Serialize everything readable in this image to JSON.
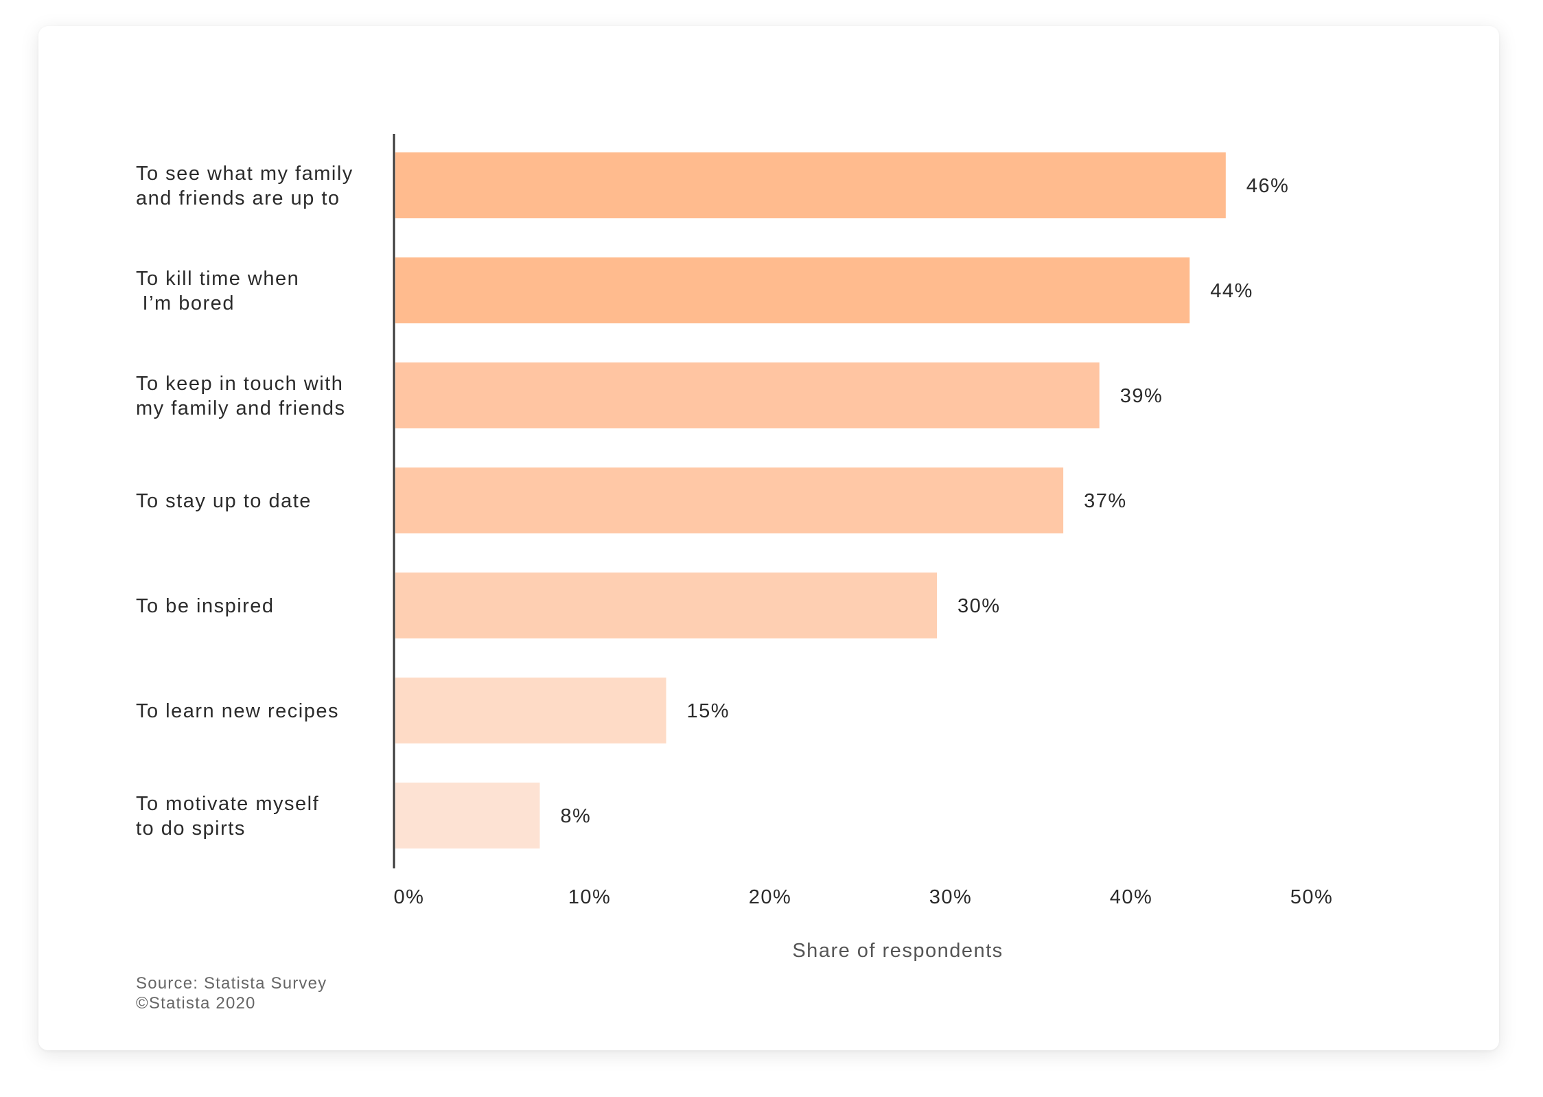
{
  "chart_data": {
    "type": "bar",
    "orientation": "horizontal",
    "categories": [
      [
        "To see what my family",
        "and friends are up to"
      ],
      [
        "To kill time when",
        " I’m bored"
      ],
      [
        "To keep in touch with",
        "my family and friends"
      ],
      [
        "To stay up to date"
      ],
      [
        "To be inspired"
      ],
      [
        "To learn new recipes"
      ],
      [
        "To motivate myself",
        "to do spirts"
      ]
    ],
    "values": [
      46,
      44,
      39,
      37,
      30,
      15,
      8
    ],
    "value_labels": [
      "46%",
      "44%",
      "39%",
      "37%",
      "30%",
      "15%",
      "8%"
    ],
    "bar_colors": [
      "#FFBB8E",
      "#FFBB8E",
      "#FFC5A2",
      "#FFC8A6",
      "#FECFB2",
      "#FEDBC6",
      "#FDE2D3"
    ],
    "x_ticks": [
      0,
      10,
      20,
      30,
      40,
      50
    ],
    "x_tick_labels": [
      "0%",
      "10%",
      "20%",
      "30%",
      "40%",
      "50%"
    ],
    "xlim": [
      0,
      50
    ],
    "xlabel": "Share of respondents",
    "title": "",
    "grid": false
  },
  "footer": {
    "source": "Source: Statista Survey",
    "copyright": "©Statista 2020"
  }
}
